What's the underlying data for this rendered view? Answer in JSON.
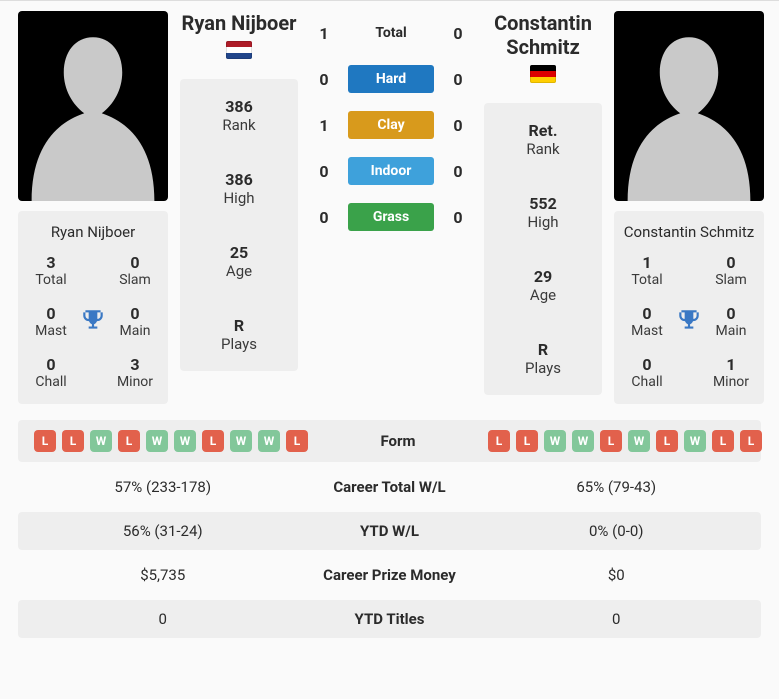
{
  "p1": {
    "name": "Ryan Nijboer",
    "flag_colors": [
      "#ae1c28",
      "#ffffff",
      "#21468b"
    ],
    "flag_type": "h3",
    "card": {
      "total": {
        "v": "3",
        "l": "Total"
      },
      "slam": {
        "v": "0",
        "l": "Slam"
      },
      "mast": {
        "v": "0",
        "l": "Mast"
      },
      "main": {
        "v": "0",
        "l": "Main"
      },
      "chall": {
        "v": "0",
        "l": "Chall"
      },
      "minor": {
        "v": "3",
        "l": "Minor"
      }
    },
    "mid": {
      "rank": {
        "v": "386",
        "l": "Rank"
      },
      "high": {
        "v": "386",
        "l": "High"
      },
      "age": {
        "v": "25",
        "l": "Age"
      },
      "plays": {
        "v": "R",
        "l": "Plays"
      }
    },
    "form": [
      "L",
      "L",
      "W",
      "L",
      "W",
      "W",
      "L",
      "W",
      "W",
      "L"
    ]
  },
  "p2": {
    "name": "Constantin Schmitz",
    "flag_colors": [
      "#000000",
      "#dd0000",
      "#ffce00"
    ],
    "flag_type": "h3",
    "card": {
      "total": {
        "v": "1",
        "l": "Total"
      },
      "slam": {
        "v": "0",
        "l": "Slam"
      },
      "mast": {
        "v": "0",
        "l": "Mast"
      },
      "main": {
        "v": "0",
        "l": "Main"
      },
      "chall": {
        "v": "0",
        "l": "Chall"
      },
      "minor": {
        "v": "1",
        "l": "Minor"
      }
    },
    "mid": {
      "rank": {
        "v": "Ret.",
        "l": "Rank"
      },
      "high": {
        "v": "552",
        "l": "High"
      },
      "age": {
        "v": "29",
        "l": "Age"
      },
      "plays": {
        "v": "R",
        "l": "Plays"
      }
    },
    "form": [
      "L",
      "L",
      "W",
      "W",
      "L",
      "W",
      "L",
      "W",
      "L",
      "L"
    ]
  },
  "h2h": [
    {
      "l": "1",
      "label": "Total",
      "color": "",
      "r": "0"
    },
    {
      "l": "0",
      "label": "Hard",
      "color": "#1f78c1",
      "r": "0"
    },
    {
      "l": "1",
      "label": "Clay",
      "color": "#d89a1c",
      "r": "0"
    },
    {
      "l": "0",
      "label": "Indoor",
      "color": "#3ea1db",
      "r": "0"
    },
    {
      "l": "0",
      "label": "Grass",
      "color": "#3aa24a",
      "r": "0"
    }
  ],
  "rows": [
    {
      "label": "Form",
      "type": "form"
    },
    {
      "label": "Career Total W/L",
      "l": "57% (233-178)",
      "r": "65% (79-43)"
    },
    {
      "label": "YTD W/L",
      "l": "56% (31-24)",
      "r": "0% (0-0)"
    },
    {
      "label": "Career Prize Money",
      "l": "$5,735",
      "r": "$0"
    },
    {
      "label": "YTD Titles",
      "l": "0",
      "r": "0"
    }
  ],
  "colors": {
    "win": "#82c79a",
    "loss": "#e2614c",
    "trophy": "#3a78c4"
  }
}
